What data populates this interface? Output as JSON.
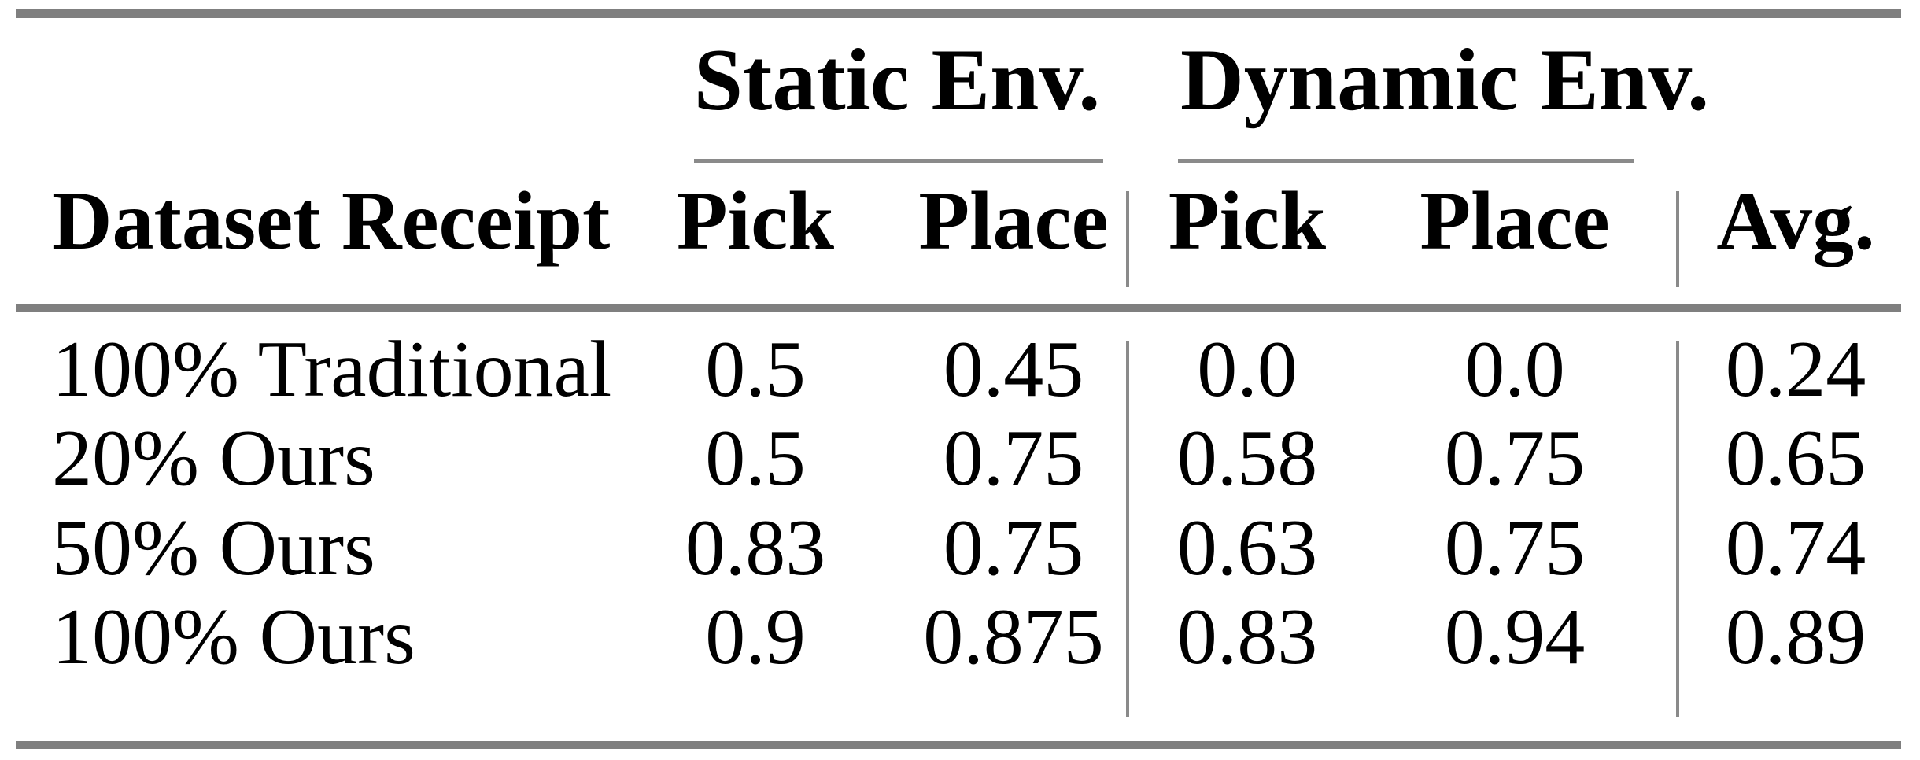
{
  "table": {
    "corner_header": "Dataset Receipt",
    "column_groups": [
      {
        "label": "Static Env."
      },
      {
        "label": "Dynamic Env."
      }
    ],
    "columns": [
      "Pick",
      "Place",
      "Pick",
      "Place",
      "Avg."
    ],
    "rows": [
      {
        "label": "100% Traditional",
        "values": [
          "0.5",
          "0.45",
          "0.0",
          "0.0",
          "0.24"
        ]
      },
      {
        "label": "20% Ours",
        "values": [
          "0.5",
          "0.75",
          "0.58",
          "0.75",
          "0.65"
        ]
      },
      {
        "label": "50% Ours",
        "values": [
          "0.83",
          "0.75",
          "0.63",
          "0.75",
          "0.74"
        ]
      },
      {
        "label": "100% Ours",
        "values": [
          "0.9",
          "0.875",
          "0.83",
          "0.94",
          "0.89"
        ]
      }
    ],
    "colors": {
      "rule": "#7f7f7f",
      "divider": "#8a8a8a",
      "text": "#000000",
      "background": "#ffffff"
    }
  },
  "chart_data": {
    "type": "table",
    "columns": [
      "Dataset Receipt",
      "Static Env. Pick",
      "Static Env. Place",
      "Dynamic Env. Pick",
      "Dynamic Env. Place",
      "Avg."
    ],
    "rows": [
      [
        "100% Traditional",
        0.5,
        0.45,
        0.0,
        0.0,
        0.24
      ],
      [
        "20% Ours",
        0.5,
        0.75,
        0.58,
        0.75,
        0.65
      ],
      [
        "50% Ours",
        0.83,
        0.75,
        0.63,
        0.75,
        0.74
      ],
      [
        "100% Ours",
        0.9,
        0.875,
        0.83,
        0.94,
        0.89
      ]
    ]
  }
}
